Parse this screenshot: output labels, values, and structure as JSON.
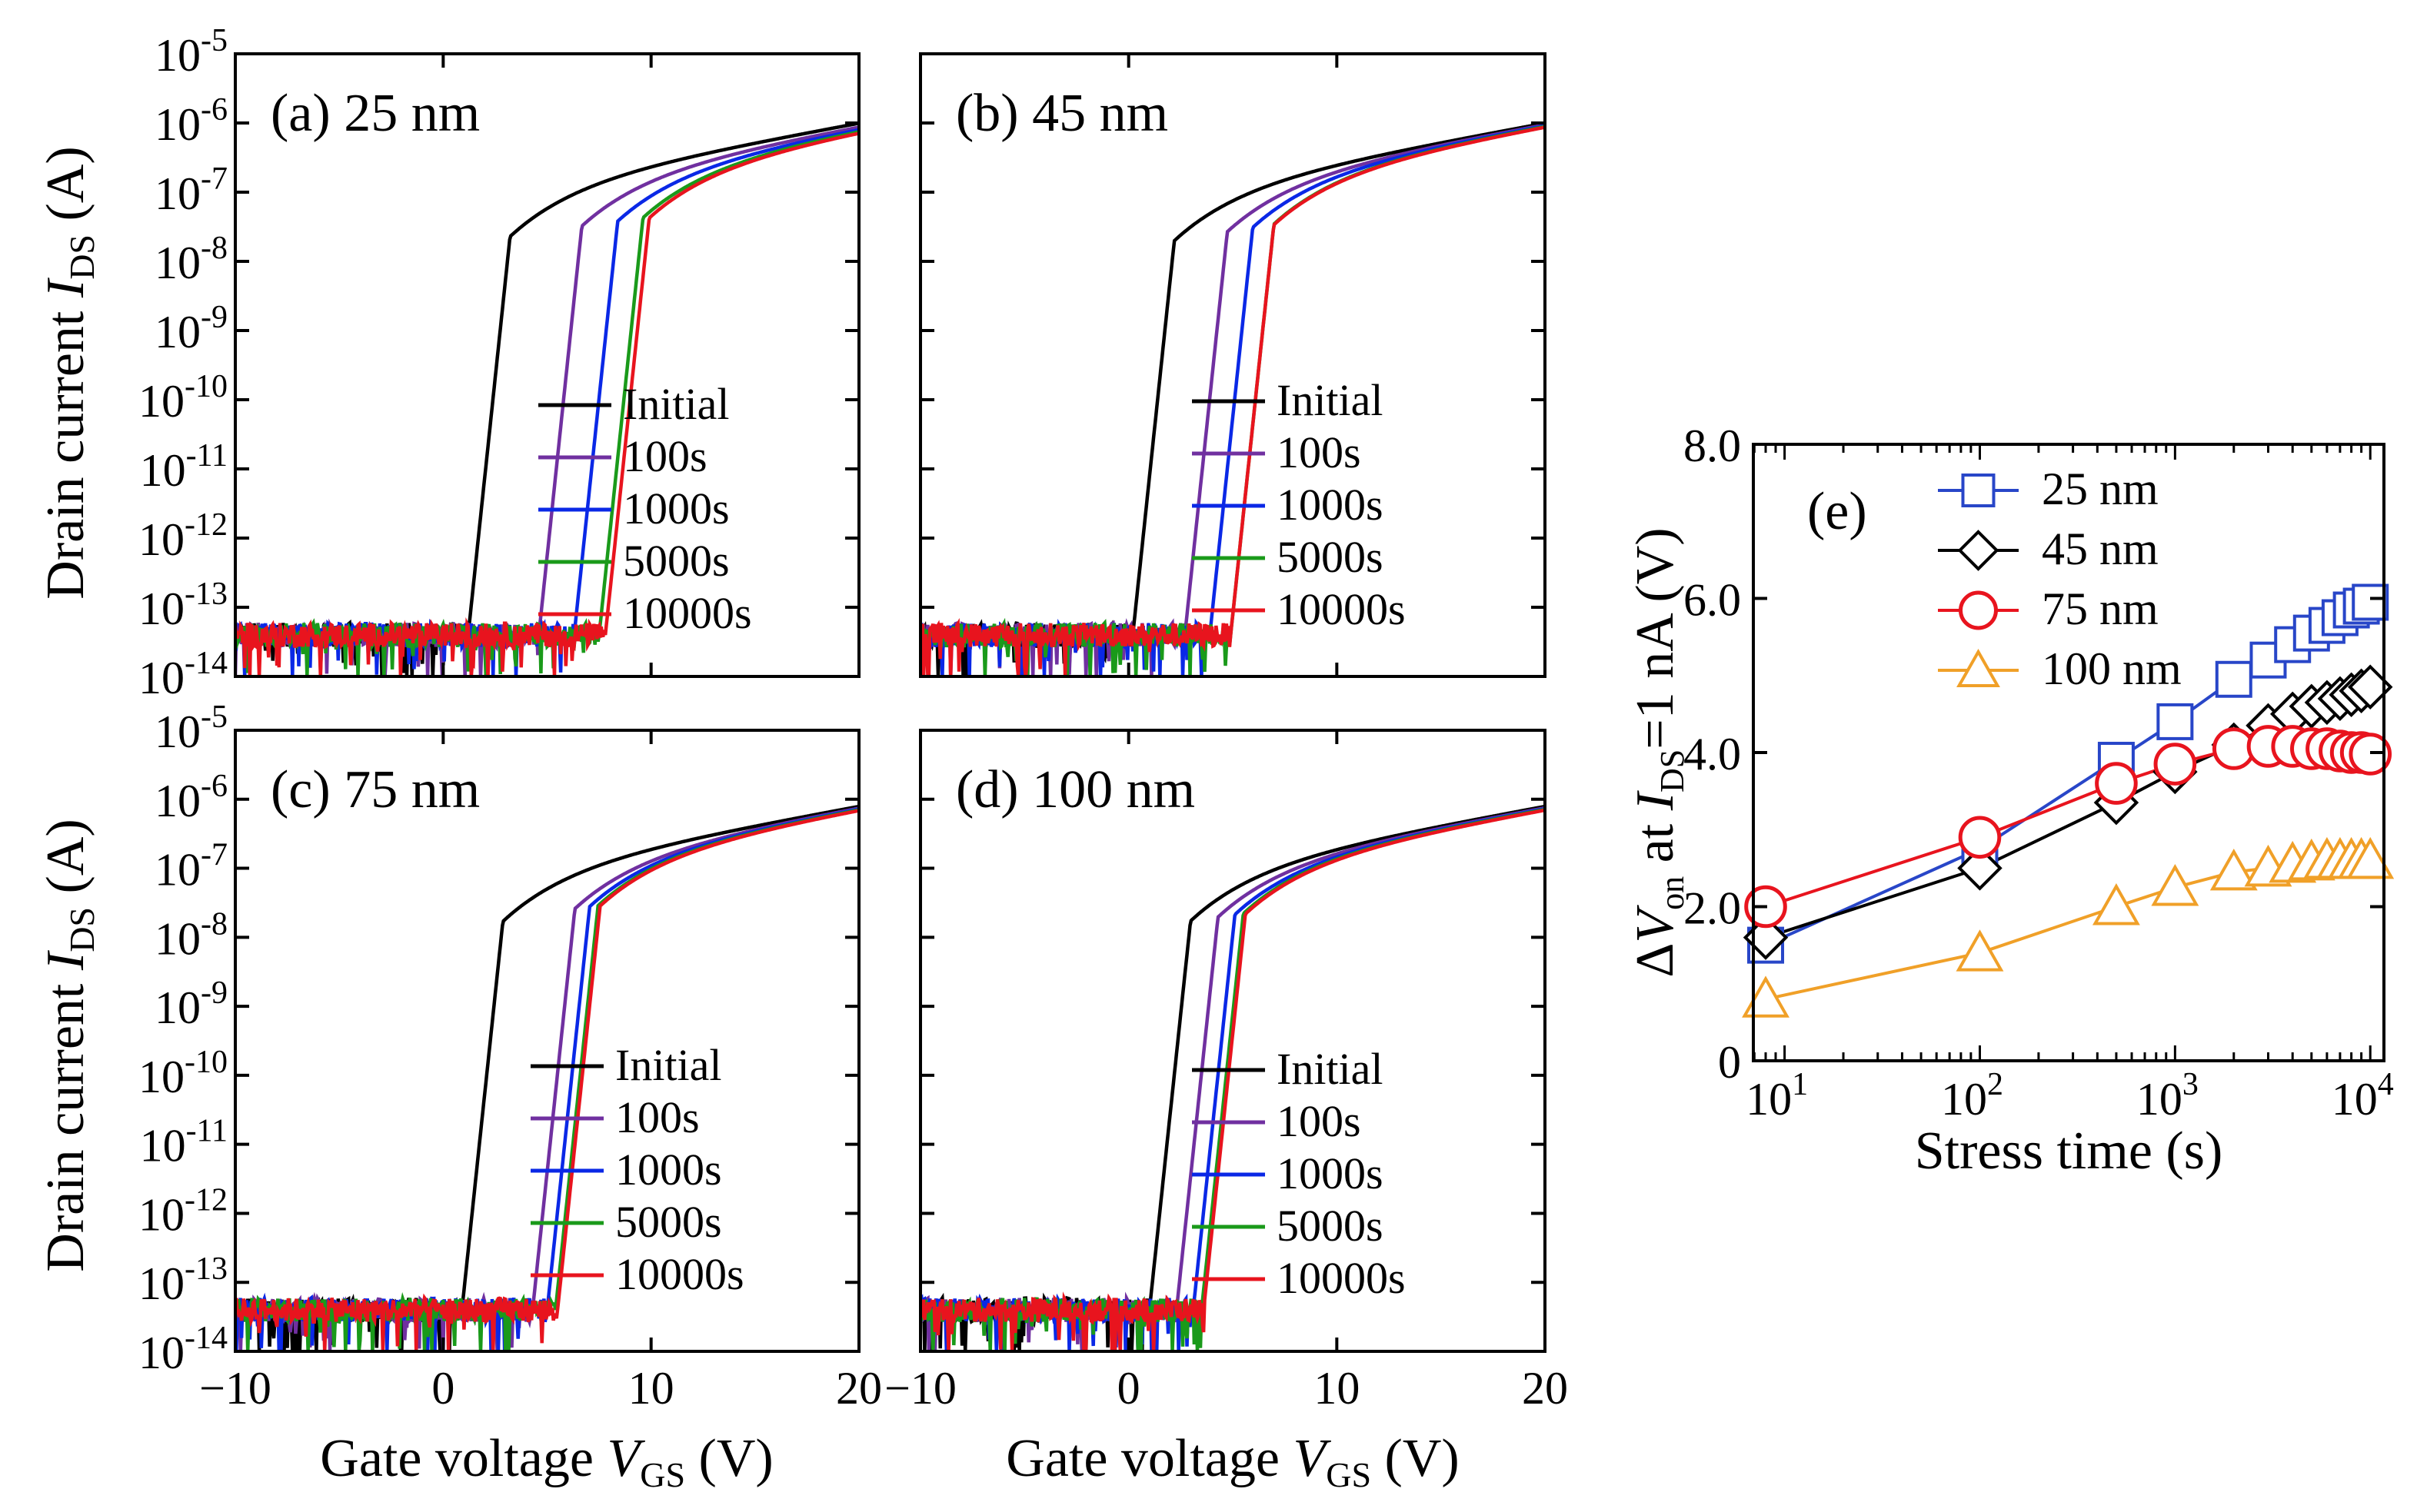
{
  "figure": {
    "ylabel_left": {
      "main": "Drain current ",
      "var": "I",
      "sub": "DS",
      "unit": " (A)"
    },
    "xlabel_bottom": {
      "main": "Gate voltage  ",
      "var": "V",
      "sub": "GS",
      "unit": " (V)"
    },
    "legend_labels": [
      "Initial",
      "100s",
      "1000s",
      "5000s",
      "10000s"
    ],
    "series_colors": [
      "#000000",
      "#7030a0",
      "#0a28e6",
      "#1a9a1a",
      "#e8141e"
    ]
  },
  "chart_data": [
    {
      "type": "line",
      "panel": "a",
      "title": "(a) 25  nm",
      "xlabel": "Gate voltage VGS (V)",
      "ylabel": "Drain current IDS (A)",
      "xlim": [
        -10,
        20
      ],
      "ylim_log10": [
        -14,
        -5
      ],
      "xticks": [
        -10,
        0,
        10,
        20
      ],
      "ytick_exponents": [
        -14,
        -13,
        -12,
        -11,
        -10,
        -9,
        -8,
        -7,
        -6,
        -5
      ],
      "series": [
        {
          "name": "Initial",
          "von": 1.2,
          "ss": 0.35,
          "sat": -6.0
        },
        {
          "name": "100s",
          "von": 4.6,
          "ss": 0.35,
          "sat": -6.05
        },
        {
          "name": "1000s",
          "von": 6.3,
          "ss": 0.35,
          "sat": -6.08
        },
        {
          "name": "5000s",
          "von": 7.5,
          "ss": 0.35,
          "sat": -6.1
        },
        {
          "name": "10000s",
          "von": 7.8,
          "ss": 0.35,
          "sat": -6.12
        }
      ]
    },
    {
      "type": "line",
      "panel": "b",
      "title": "(b) 45  nm",
      "xlabel": "Gate voltage VGS (V)",
      "ylabel": "Drain current IDS (A)",
      "xlim": [
        -10,
        20
      ],
      "ylim_log10": [
        -14,
        -5
      ],
      "xticks": [
        -10,
        0,
        10,
        20
      ],
      "ytick_exponents": [
        -14,
        -13,
        -12,
        -11,
        -10,
        -9,
        -8,
        -7,
        -6,
        -5
      ],
      "series": [
        {
          "name": "Initial",
          "von": 0.2,
          "ss": 0.35,
          "sat": -6.0
        },
        {
          "name": "100s",
          "von": 2.7,
          "ss": 0.35,
          "sat": -6.02
        },
        {
          "name": "1000s",
          "von": 3.9,
          "ss": 0.35,
          "sat": -6.03
        },
        {
          "name": "5000s",
          "von": 4.9,
          "ss": 0.35,
          "sat": -6.04
        },
        {
          "name": "10000s",
          "von": 4.9,
          "ss": 0.35,
          "sat": -6.05
        }
      ]
    },
    {
      "type": "line",
      "panel": "c",
      "title": "(c) 75  nm",
      "xlabel": "Gate voltage VGS (V)",
      "ylabel": "Drain current IDS (A)",
      "xlim": [
        -10,
        20
      ],
      "ylim_log10": [
        -14,
        -5
      ],
      "xticks": [
        -10,
        0,
        10,
        20
      ],
      "ytick_exponents": [
        -14,
        -13,
        -12,
        -11,
        -10,
        -9,
        -8,
        -7,
        -6,
        -5
      ],
      "series": [
        {
          "name": "Initial",
          "von": 0.9,
          "ss": 0.35,
          "sat": -6.1
        },
        {
          "name": "100s",
          "von": 4.3,
          "ss": 0.35,
          "sat": -6.12
        },
        {
          "name": "1000s",
          "von": 5.0,
          "ss": 0.35,
          "sat": -6.13
        },
        {
          "name": "5000s",
          "von": 5.4,
          "ss": 0.35,
          "sat": -6.14
        },
        {
          "name": "10000s",
          "von": 5.5,
          "ss": 0.35,
          "sat": -6.15
        }
      ]
    },
    {
      "type": "line",
      "panel": "d",
      "title": "(d) 100  nm",
      "xlabel": "Gate voltage VGS (V)",
      "ylabel": "Drain current IDS (A)",
      "xlim": [
        -10,
        20
      ],
      "ylim_log10": [
        -14,
        -5
      ],
      "xticks": [
        -10,
        0,
        10,
        20
      ],
      "ytick_exponents": [
        -14,
        -13,
        -12,
        -11,
        -10,
        -9,
        -8,
        -7,
        -6,
        -5
      ],
      "series": [
        {
          "name": "Initial",
          "von": 1.0,
          "ss": 0.35,
          "sat": -6.1
        },
        {
          "name": "100s",
          "von": 2.3,
          "ss": 0.35,
          "sat": -6.12
        },
        {
          "name": "1000s",
          "von": 3.1,
          "ss": 0.35,
          "sat": -6.13
        },
        {
          "name": "5000s",
          "von": 3.5,
          "ss": 0.35,
          "sat": -6.14
        },
        {
          "name": "10000s",
          "von": 3.6,
          "ss": 0.35,
          "sat": -6.15
        }
      ]
    },
    {
      "type": "scatter",
      "panel": "e",
      "title": "(e)",
      "xlabel": "Stress time (s)",
      "ylabel": "ΔVon at IDS=1 nA (V)",
      "xscale": "log",
      "xlim_log10": [
        0.84,
        4.07
      ],
      "ylim": [
        0,
        8
      ],
      "yticks": [
        0,
        2,
        4,
        6,
        8
      ],
      "ytick_labels": [
        "0",
        "2.0",
        "4.0",
        "6.0",
        "8.0"
      ],
      "xtick_exponents": [
        1,
        2,
        3,
        4
      ],
      "x": [
        8,
        100,
        500,
        1000,
        2000,
        3000,
        4000,
        5000,
        6000,
        7000,
        8000,
        9000,
        10000
      ],
      "series": [
        {
          "name": "25 nm",
          "color": "#2846c8",
          "marker": "square",
          "y": [
            1.5,
            2.75,
            3.9,
            4.4,
            4.95,
            5.2,
            5.4,
            5.55,
            5.65,
            5.75,
            5.85,
            5.9,
            5.95
          ]
        },
        {
          "name": "45 nm",
          "color": "#000000",
          "marker": "diamond",
          "y": [
            1.6,
            2.5,
            3.35,
            3.75,
            4.1,
            4.35,
            4.5,
            4.6,
            4.65,
            4.7,
            4.75,
            4.8,
            4.85
          ]
        },
        {
          "name": "75 nm",
          "color": "#e8141e",
          "marker": "circle",
          "y": [
            2.0,
            2.9,
            3.6,
            3.85,
            4.05,
            4.08,
            4.08,
            4.05,
            4.05,
            4.02,
            4.0,
            4.0,
            3.98
          ]
        },
        {
          "name": "100 nm",
          "color": "#f0a028",
          "marker": "triangle",
          "y": [
            0.8,
            1.4,
            2.0,
            2.25,
            2.45,
            2.5,
            2.55,
            2.58,
            2.6,
            2.6,
            2.6,
            2.6,
            2.6
          ]
        }
      ]
    }
  ]
}
